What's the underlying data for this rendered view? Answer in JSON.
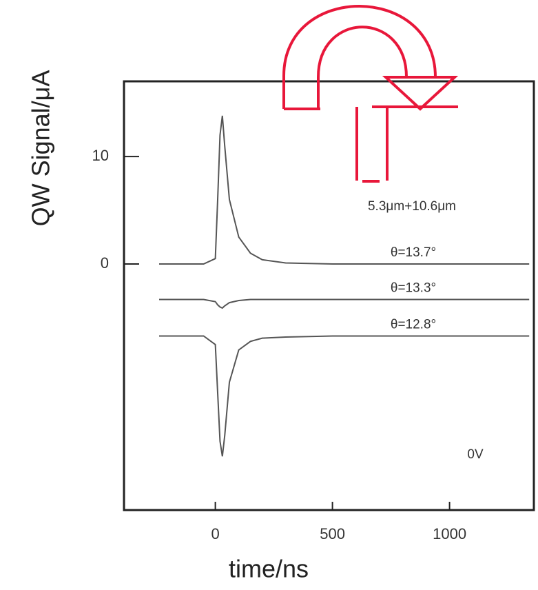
{
  "chart_data": {
    "type": "line",
    "xlabel": "time/ns",
    "ylabel": "QW Signal/μA",
    "x": [
      -240,
      -50,
      0,
      10,
      20,
      30,
      40,
      60,
      100,
      150,
      200,
      300,
      500,
      800,
      1100,
      1340
    ],
    "series": [
      {
        "name": "θ=13.7°",
        "color": "#555555",
        "values": [
          0,
          0,
          0.5,
          6,
          12,
          13.8,
          11,
          6,
          2.5,
          1,
          0.4,
          0.1,
          0,
          0,
          0,
          0
        ]
      },
      {
        "name": "θ=13.3°",
        "color": "#555555",
        "values": [
          -3.3,
          -3.3,
          -3.5,
          -3.8,
          -4.0,
          -4.1,
          -3.9,
          -3.6,
          -3.4,
          -3.3,
          -3.3,
          -3.3,
          -3.3,
          -3.3,
          -3.3,
          -3.3
        ]
      },
      {
        "name": "θ=12.8°",
        "color": "#555555",
        "values": [
          -6.7,
          -6.7,
          -7.5,
          -12,
          -16.5,
          -17.9,
          -16,
          -11,
          -8,
          -7.2,
          -6.9,
          -6.8,
          -6.7,
          -6.7,
          -6.7,
          -6.7
        ]
      }
    ],
    "annotations": [
      "5.3μm+10.6μm",
      "0V"
    ],
    "xlim": [
      -390,
      1360
    ],
    "ylim": [
      -22.9,
      17
    ],
    "xticks": [
      0,
      500,
      1000
    ],
    "yticks": [
      0,
      10
    ]
  }
}
